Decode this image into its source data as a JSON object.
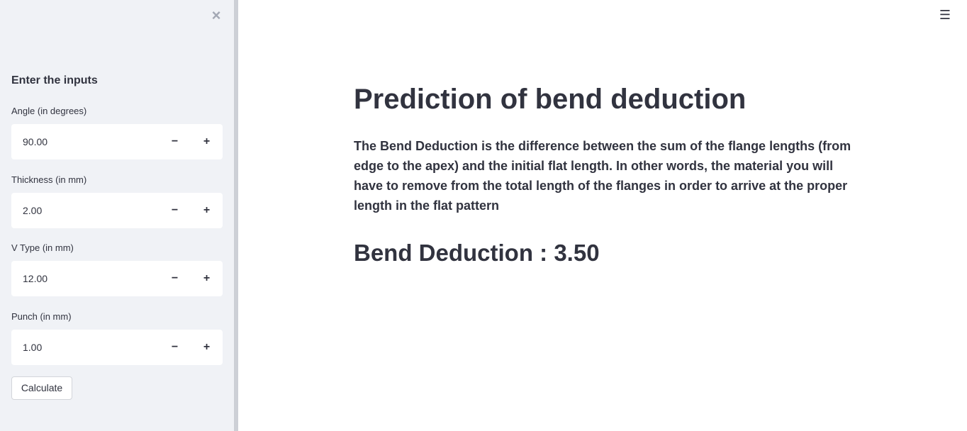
{
  "sidebar": {
    "close_symbol": "×",
    "header": "Enter the inputs",
    "fields": [
      {
        "label": "Angle (in degrees)",
        "value": "90.00",
        "minus": "−",
        "plus": "+"
      },
      {
        "label": "Thickness (in mm)",
        "value": "2.00",
        "minus": "−",
        "plus": "+"
      },
      {
        "label": "V Type (in mm)",
        "value": "12.00",
        "minus": "−",
        "plus": "+"
      },
      {
        "label": "Punch (in mm)",
        "value": "1.00",
        "minus": "−",
        "plus": "+"
      }
    ],
    "button_label": "Calculate"
  },
  "topbar": {
    "menu_symbol": "☰"
  },
  "main": {
    "title": "Prediction of bend deduction",
    "description": "The Bend Deduction is the difference between the sum of the flange lengths (from edge to the apex) and the initial flat length. In other words, the material you will have to remove from the total length of the flanges in order to arrive at the proper length in the flat pattern",
    "result": "Bend Deduction : 3.50"
  },
  "colors": {
    "sidebar_bg": "#f0f2f6",
    "text": "#31333f",
    "main_bg": "#ffffff"
  }
}
